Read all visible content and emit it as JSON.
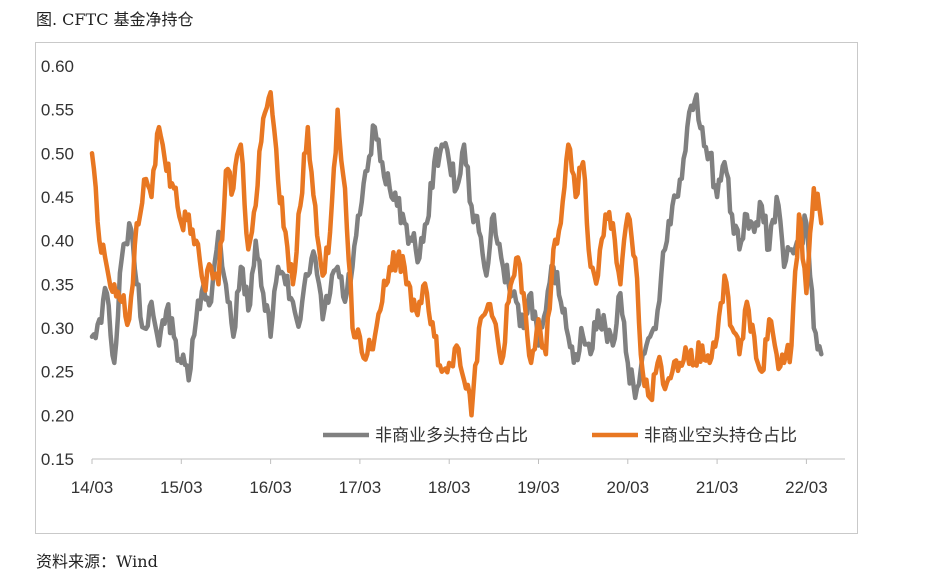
{
  "figure": {
    "title": "图. CFTC 基金净持仓",
    "source": "资料来源：Wind"
  },
  "chart_data": {
    "type": "line",
    "title": "",
    "xlabel": "",
    "ylabel": "",
    "x_ticks": [
      "14/03",
      "15/03",
      "16/03",
      "17/03",
      "18/03",
      "19/03",
      "20/03",
      "21/03",
      "22/03"
    ],
    "y_ticks": [
      "0.15",
      "0.20",
      "0.25",
      "0.30",
      "0.35",
      "0.40",
      "0.45",
      "0.50",
      "0.55",
      "0.60"
    ],
    "ylim": [
      0.15,
      0.6
    ],
    "xlim": [
      "2014-03",
      "2022-05"
    ],
    "grid": false,
    "legend_position": "bottom-right inside",
    "series": [
      {
        "name": "非商业多头持仓占比",
        "color": "#808080",
        "points": [
          [
            "2014-03",
            0.29
          ],
          [
            "2014-04",
            0.31
          ],
          [
            "2014-05",
            0.34
          ],
          [
            "2014-06",
            0.26
          ],
          [
            "2014-07",
            0.38
          ],
          [
            "2014-08",
            0.42
          ],
          [
            "2014-09",
            0.35
          ],
          [
            "2014-10",
            0.3
          ],
          [
            "2014-11",
            0.33
          ],
          [
            "2014-12",
            0.28
          ],
          [
            "2015-01",
            0.32
          ],
          [
            "2015-02",
            0.29
          ],
          [
            "2015-03",
            0.26
          ],
          [
            "2015-04",
            0.24
          ],
          [
            "2015-05",
            0.31
          ],
          [
            "2015-06",
            0.35
          ],
          [
            "2015-07",
            0.33
          ],
          [
            "2015-08",
            0.41
          ],
          [
            "2015-09",
            0.35
          ],
          [
            "2015-10",
            0.29
          ],
          [
            "2015-11",
            0.37
          ],
          [
            "2015-12",
            0.32
          ],
          [
            "2016-01",
            0.4
          ],
          [
            "2016-02",
            0.34
          ],
          [
            "2016-03",
            0.29
          ],
          [
            "2016-04",
            0.37
          ],
          [
            "2016-05",
            0.35
          ],
          [
            "2016-06",
            0.33
          ],
          [
            "2016-07",
            0.31
          ],
          [
            "2016-08",
            0.36
          ],
          [
            "2016-09",
            0.38
          ],
          [
            "2016-10",
            0.31
          ],
          [
            "2016-11",
            0.34
          ],
          [
            "2016-12",
            0.37
          ],
          [
            "2017-01",
            0.33
          ],
          [
            "2017-02",
            0.37
          ],
          [
            "2017-03",
            0.43
          ],
          [
            "2017-04",
            0.48
          ],
          [
            "2017-05",
            0.53
          ],
          [
            "2017-06",
            0.49
          ],
          [
            "2017-07",
            0.46
          ],
          [
            "2017-08",
            0.44
          ],
          [
            "2017-09",
            0.42
          ],
          [
            "2017-10",
            0.4
          ],
          [
            "2017-11",
            0.38
          ],
          [
            "2017-12",
            0.42
          ],
          [
            "2018-01",
            0.49
          ],
          [
            "2018-02",
            0.51
          ],
          [
            "2018-03",
            0.49
          ],
          [
            "2018-04",
            0.46
          ],
          [
            "2018-05",
            0.51
          ],
          [
            "2018-06",
            0.44
          ],
          [
            "2018-07",
            0.41
          ],
          [
            "2018-08",
            0.36
          ],
          [
            "2018-09",
            0.43
          ],
          [
            "2018-10",
            0.38
          ],
          [
            "2018-11",
            0.35
          ],
          [
            "2018-12",
            0.33
          ],
          [
            "2019-01",
            0.3
          ],
          [
            "2019-02",
            0.34
          ],
          [
            "2019-03",
            0.28
          ],
          [
            "2019-04",
            0.32
          ],
          [
            "2019-05",
            0.37
          ],
          [
            "2019-06",
            0.33
          ],
          [
            "2019-07",
            0.29
          ],
          [
            "2019-08",
            0.27
          ],
          [
            "2019-09",
            0.29
          ],
          [
            "2019-10",
            0.27
          ],
          [
            "2019-11",
            0.32
          ],
          [
            "2019-12",
            0.3
          ],
          [
            "2020-01",
            0.28
          ],
          [
            "2020-02",
            0.34
          ],
          [
            "2020-03",
            0.26
          ],
          [
            "2020-04",
            0.22
          ],
          [
            "2020-05",
            0.27
          ],
          [
            "2020-06",
            0.29
          ],
          [
            "2020-07",
            0.32
          ],
          [
            "2020-08",
            0.39
          ],
          [
            "2020-09",
            0.44
          ],
          [
            "2020-10",
            0.47
          ],
          [
            "2020-11",
            0.53
          ],
          [
            "2020-12",
            0.56
          ],
          [
            "2021-01",
            0.53
          ],
          [
            "2021-02",
            0.5
          ],
          [
            "2021-03",
            0.45
          ],
          [
            "2021-04",
            0.49
          ],
          [
            "2021-05",
            0.43
          ],
          [
            "2021-06",
            0.39
          ],
          [
            "2021-07",
            0.43
          ],
          [
            "2021-08",
            0.41
          ],
          [
            "2021-09",
            0.44
          ],
          [
            "2021-10",
            0.39
          ],
          [
            "2021-11",
            0.45
          ],
          [
            "2021-12",
            0.37
          ],
          [
            "2022-01",
            0.39
          ],
          [
            "2022-02",
            0.4
          ],
          [
            "2022-03",
            0.42
          ],
          [
            "2022-04",
            0.3
          ],
          [
            "2022-05",
            0.27
          ]
        ]
      },
      {
        "name": "非商业空头持仓占比",
        "color": "#e87722",
        "points": [
          [
            "2014-03",
            0.5
          ],
          [
            "2014-04",
            0.4
          ],
          [
            "2014-05",
            0.37
          ],
          [
            "2014-06",
            0.35
          ],
          [
            "2014-07",
            0.33
          ],
          [
            "2014-08",
            0.31
          ],
          [
            "2014-09",
            0.42
          ],
          [
            "2014-10",
            0.47
          ],
          [
            "2014-11",
            0.45
          ],
          [
            "2014-12",
            0.53
          ],
          [
            "2015-01",
            0.48
          ],
          [
            "2015-02",
            0.46
          ],
          [
            "2015-03",
            0.42
          ],
          [
            "2015-04",
            0.43
          ],
          [
            "2015-05",
            0.4
          ],
          [
            "2015-06",
            0.35
          ],
          [
            "2015-07",
            0.37
          ],
          [
            "2015-08",
            0.35
          ],
          [
            "2015-09",
            0.48
          ],
          [
            "2015-10",
            0.46
          ],
          [
            "2015-11",
            0.51
          ],
          [
            "2015-12",
            0.39
          ],
          [
            "2016-01",
            0.44
          ],
          [
            "2016-02",
            0.54
          ],
          [
            "2016-03",
            0.57
          ],
          [
            "2016-04",
            0.47
          ],
          [
            "2016-05",
            0.41
          ],
          [
            "2016-06",
            0.35
          ],
          [
            "2016-07",
            0.44
          ],
          [
            "2016-08",
            0.53
          ],
          [
            "2016-09",
            0.44
          ],
          [
            "2016-10",
            0.36
          ],
          [
            "2016-11",
            0.41
          ],
          [
            "2016-12",
            0.55
          ],
          [
            "2017-01",
            0.46
          ],
          [
            "2017-02",
            0.3
          ],
          [
            "2017-03",
            0.29
          ],
          [
            "2017-04",
            0.27
          ],
          [
            "2017-05",
            0.29
          ],
          [
            "2017-06",
            0.33
          ],
          [
            "2017-07",
            0.37
          ],
          [
            "2017-08",
            0.38
          ],
          [
            "2017-09",
            0.37
          ],
          [
            "2017-10",
            0.32
          ],
          [
            "2017-11",
            0.33
          ],
          [
            "2017-12",
            0.34
          ],
          [
            "2018-01",
            0.29
          ],
          [
            "2018-02",
            0.25
          ],
          [
            "2018-03",
            0.26
          ],
          [
            "2018-04",
            0.28
          ],
          [
            "2018-05",
            0.24
          ],
          [
            "2018-06",
            0.2
          ],
          [
            "2018-07",
            0.3
          ],
          [
            "2018-08",
            0.32
          ],
          [
            "2018-09",
            0.31
          ],
          [
            "2018-10",
            0.26
          ],
          [
            "2018-11",
            0.33
          ],
          [
            "2018-12",
            0.38
          ],
          [
            "2019-01",
            0.34
          ],
          [
            "2019-02",
            0.26
          ],
          [
            "2019-03",
            0.31
          ],
          [
            "2019-04",
            0.27
          ],
          [
            "2019-05",
            0.39
          ],
          [
            "2019-06",
            0.42
          ],
          [
            "2019-07",
            0.51
          ],
          [
            "2019-08",
            0.45
          ],
          [
            "2019-09",
            0.49
          ],
          [
            "2019-10",
            0.37
          ],
          [
            "2019-11",
            0.36
          ],
          [
            "2019-12",
            0.43
          ],
          [
            "2020-01",
            0.42
          ],
          [
            "2020-02",
            0.35
          ],
          [
            "2020-03",
            0.43
          ],
          [
            "2020-04",
            0.38
          ],
          [
            "2020-05",
            0.25
          ],
          [
            "2020-06",
            0.22
          ],
          [
            "2020-07",
            0.26
          ],
          [
            "2020-08",
            0.23
          ],
          [
            "2020-09",
            0.25
          ],
          [
            "2020-10",
            0.26
          ],
          [
            "2020-11",
            0.27
          ],
          [
            "2020-12",
            0.26
          ],
          [
            "2021-01",
            0.28
          ],
          [
            "2021-02",
            0.26
          ],
          [
            "2021-03",
            0.29
          ],
          [
            "2021-04",
            0.36
          ],
          [
            "2021-05",
            0.3
          ],
          [
            "2021-06",
            0.27
          ],
          [
            "2021-07",
            0.33
          ],
          [
            "2021-08",
            0.29
          ],
          [
            "2021-09",
            0.25
          ],
          [
            "2021-10",
            0.31
          ],
          [
            "2021-11",
            0.27
          ],
          [
            "2021-12",
            0.26
          ],
          [
            "2022-01",
            0.28
          ],
          [
            "2022-02",
            0.43
          ],
          [
            "2022-03",
            0.34
          ],
          [
            "2022-04",
            0.46
          ],
          [
            "2022-05",
            0.42
          ]
        ]
      }
    ]
  }
}
